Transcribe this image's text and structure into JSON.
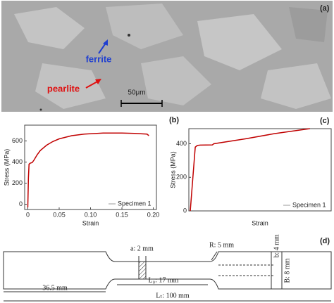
{
  "micrograph": {
    "label": "(a)",
    "annotations": [
      "ferrite",
      "pearlite"
    ],
    "scale_bar": "50μm"
  },
  "chart_data": [
    {
      "type": "line",
      "label": "(b)",
      "x_label": "Strain",
      "y_label": "Stress (MPa)",
      "xlim": [
        -0.005,
        0.205
      ],
      "xticks": [
        0,
        0.05,
        {
          "value": 0.1,
          "label": "0.10"
        },
        0.15,
        {
          "value": 0.2,
          "label": "0.20"
        }
      ],
      "ylim": [
        -50,
        750
      ],
      "yticks": [
        0,
        200,
        400,
        600
      ],
      "series": [
        {
          "name": "Specimen 1",
          "color": "#c00000",
          "x": [
            0,
            0.001,
            0.002,
            0.004,
            0.007,
            0.01,
            0.015,
            0.02,
            0.03,
            0.04,
            0.05,
            0.07,
            0.09,
            0.12,
            0.15,
            0.17,
            0.19,
            0.193
          ],
          "values": [
            -30,
            250,
            380,
            390,
            395,
            420,
            470,
            510,
            560,
            595,
            620,
            650,
            665,
            675,
            675,
            672,
            665,
            650
          ]
        }
      ]
    },
    {
      "type": "line",
      "label": "(c)",
      "x_label": "Strain",
      "y_label": "Stress (MPa)",
      "xlim": [
        0,
        0.1
      ],
      "xticks": [],
      "ylim": [
        0,
        490
      ],
      "yticks": [
        0,
        200,
        400
      ],
      "series": [
        {
          "name": "Specimen 1",
          "color": "#c00000",
          "x": [
            0.001,
            0.0045,
            0.006,
            0.008,
            0.0165,
            0.0175,
            0.04,
            0.06,
            0.085
          ],
          "values": [
            0,
            380,
            390,
            392,
            393,
            400,
            430,
            460,
            490
          ]
        }
      ]
    }
  ],
  "specimen": {
    "label": "(d)",
    "dims": [
      "a: 2 mm",
      "R: 5 mm",
      "b: 4 mm",
      "B: 8 mm",
      "L₀: 17 mm",
      "36.5 mm",
      "Lₜ: 100 mm"
    ]
  }
}
